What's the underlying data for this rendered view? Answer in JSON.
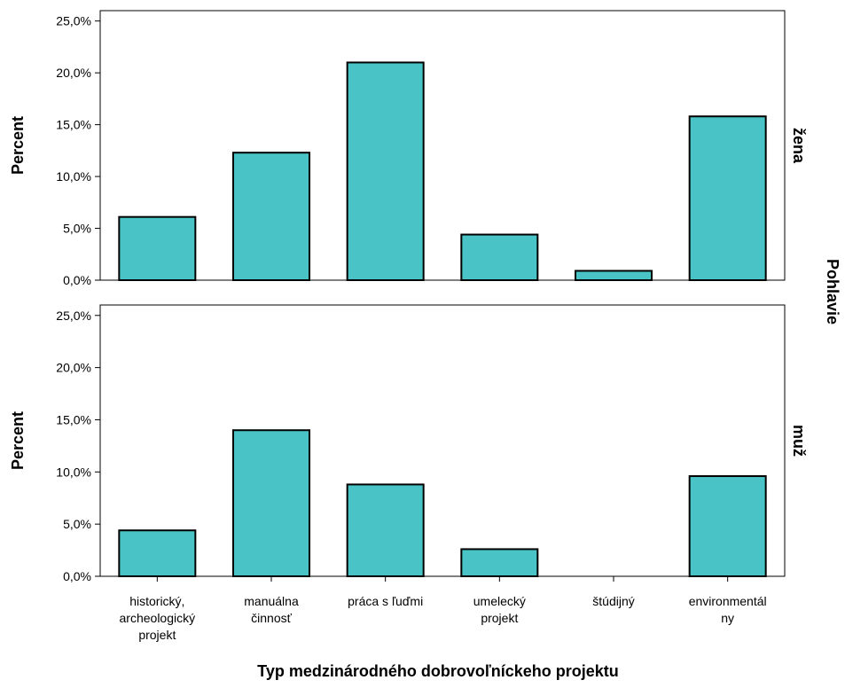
{
  "chart_data": {
    "type": "bar",
    "layout": "faceted-rows",
    "xlabel": "Typ medzinárodného dobrovoľníckeho projektu",
    "ylabel": "Percent",
    "facet_label": "Pohlavie",
    "ylim": [
      0,
      26
    ],
    "yticks": [
      "0,0%",
      "5,0%",
      "10,0%",
      "15,0%",
      "20,0%",
      "25,0%"
    ],
    "ytick_values": [
      0,
      5,
      10,
      15,
      20,
      25
    ],
    "categories": [
      [
        "historický,",
        "archeologický",
        "projekt"
      ],
      [
        "manuálna",
        "činnosť"
      ],
      [
        "práca s ľuďmi"
      ],
      [
        "umelecký",
        "projekt"
      ],
      [
        "štúdijný"
      ],
      [
        "environmentál",
        "ny"
      ]
    ],
    "bar_color": "#4AC3C6",
    "grid": false,
    "panels": [
      {
        "name": "žena",
        "values": [
          6.1,
          12.3,
          21.0,
          4.4,
          0.9,
          15.8
        ]
      },
      {
        "name": "muž",
        "values": [
          4.4,
          14.0,
          8.8,
          2.6,
          0.0,
          9.6
        ]
      }
    ]
  }
}
